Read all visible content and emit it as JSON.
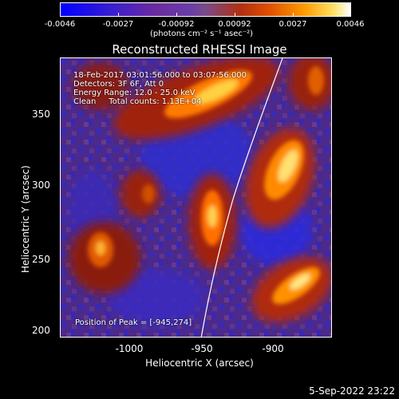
{
  "colorbar": {
    "ticks": [
      "-0.0046",
      "-0.0027",
      "-0.00092",
      "0.00092",
      "0.0027",
      "0.0046"
    ],
    "units": "(photons cm⁻² s⁻¹ asec⁻²)"
  },
  "title": "Reconstructed RHESSI Image",
  "info": {
    "line1": "18-Feb-2017 03:01:56.000 to 03:07:56.000",
    "line2": "Detectors: 3F 6F, Att 0",
    "line3": "Energy Range: 12.0 - 25.0 keV",
    "line4": "Clean     Total counts: 1.13E+04",
    "peak": "Position of Peak = [-945,274]"
  },
  "axes": {
    "ylabel": "Heliocentric Y (arcsec)",
    "xlabel": "Heliocentric X (arcsec)",
    "yticks": [
      "350",
      "300",
      "250",
      "200"
    ],
    "xticks": [
      "-1000",
      "-950",
      "-900"
    ]
  },
  "footer": "5-Sep-2022 23:22"
}
